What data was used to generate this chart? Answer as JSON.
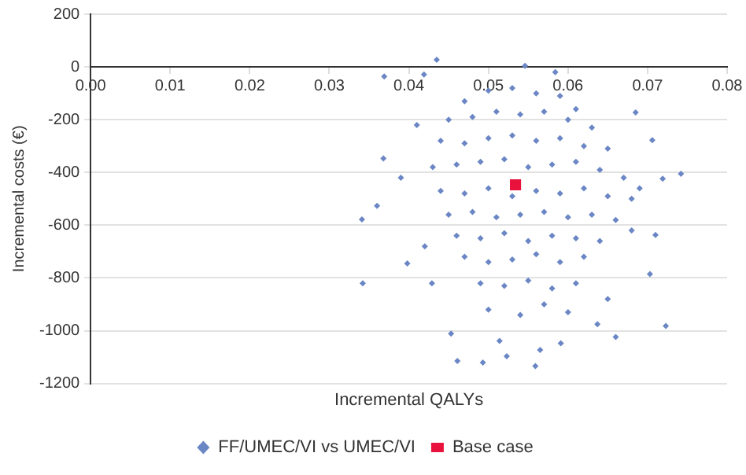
{
  "chart_data": {
    "type": "scatter",
    "xlabel": "Incremental QALYs",
    "ylabel": "Incremental costs (€)",
    "xlim": [
      0,
      0.08
    ],
    "xticks": [
      {
        "value": 0,
        "label": "0.00"
      },
      {
        "value": 0.01,
        "label": "0.01"
      },
      {
        "value": 0.02,
        "label": "0.02"
      },
      {
        "value": 0.03,
        "label": "0.03"
      },
      {
        "value": 0.04,
        "label": "0.04"
      },
      {
        "value": 0.05,
        "label": "0.05"
      },
      {
        "value": 0.06,
        "label": "0.06"
      },
      {
        "value": 0.07,
        "label": "0.07"
      },
      {
        "value": 0.08,
        "label": "0.08"
      }
    ],
    "ylim": [
      -1200,
      200
    ],
    "yticks": [
      -1200,
      -1000,
      -800,
      -600,
      -400,
      -200,
      0,
      200
    ],
    "grid": "y",
    "legend": "bottom",
    "series": [
      {
        "name": "FF/UMEC/VI vs UMEC/VI",
        "color": "#6a86c4",
        "marker": "diamond",
        "x": [
          0.0435,
          0.0369,
          0.0419,
          0.0546,
          0.0584,
          0.0742,
          0.0719,
          0.0341,
          0.036,
          0.0368,
          0.0685,
          0.0706,
          0.0342,
          0.0398,
          0.0429,
          0.0453,
          0.0461,
          0.0493,
          0.0523,
          0.0559,
          0.0591,
          0.066,
          0.0723,
          0.0703,
          0.071,
          0.0637,
          0.0514,
          0.0565,
          0.047,
          0.05,
          0.053,
          0.056,
          0.059,
          0.061,
          0.045,
          0.048,
          0.051,
          0.054,
          0.057,
          0.06,
          0.063,
          0.044,
          0.047,
          0.05,
          0.053,
          0.056,
          0.059,
          0.062,
          0.065,
          0.043,
          0.046,
          0.049,
          0.052,
          0.055,
          0.058,
          0.061,
          0.064,
          0.067,
          0.044,
          0.047,
          0.05,
          0.053,
          0.056,
          0.059,
          0.062,
          0.065,
          0.068,
          0.045,
          0.048,
          0.051,
          0.054,
          0.057,
          0.06,
          0.063,
          0.066,
          0.046,
          0.049,
          0.052,
          0.055,
          0.058,
          0.061,
          0.064,
          0.047,
          0.05,
          0.053,
          0.056,
          0.059,
          0.062,
          0.049,
          0.052,
          0.055,
          0.058,
          0.061,
          0.05,
          0.054,
          0.057,
          0.06,
          0.065,
          0.041,
          0.039,
          0.069,
          0.042,
          0.068
        ],
        "values": [
          27,
          -36,
          -29,
          4,
          -20,
          -405,
          -424,
          -578,
          -527,
          -347,
          -173,
          -278,
          -820,
          -745,
          -820,
          -1011,
          -1115,
          -1121,
          -1097,
          -1134,
          -1048,
          -1024,
          -982,
          -785,
          -637,
          -975,
          -1039,
          -1073,
          -130,
          -90,
          -80,
          -100,
          -110,
          -160,
          -200,
          -190,
          -170,
          -180,
          -170,
          -200,
          -230,
          -280,
          -290,
          -270,
          -260,
          -280,
          -270,
          -300,
          -310,
          -380,
          -370,
          -360,
          -350,
          -380,
          -370,
          -360,
          -390,
          -420,
          -470,
          -480,
          -460,
          -490,
          -470,
          -480,
          -460,
          -490,
          -500,
          -560,
          -550,
          -570,
          -560,
          -550,
          -570,
          -560,
          -580,
          -640,
          -650,
          -630,
          -660,
          -640,
          -650,
          -660,
          -720,
          -740,
          -730,
          -710,
          -740,
          -720,
          -820,
          -830,
          -810,
          -840,
          -820,
          -920,
          -940,
          -900,
          -930,
          -880,
          -220,
          -420,
          -460,
          -680,
          -620
        ]
      },
      {
        "name": "Base case",
        "color": "#e8123c",
        "marker": "square",
        "x": [
          0.0534
        ],
        "values": [
          -447
        ]
      }
    ]
  }
}
